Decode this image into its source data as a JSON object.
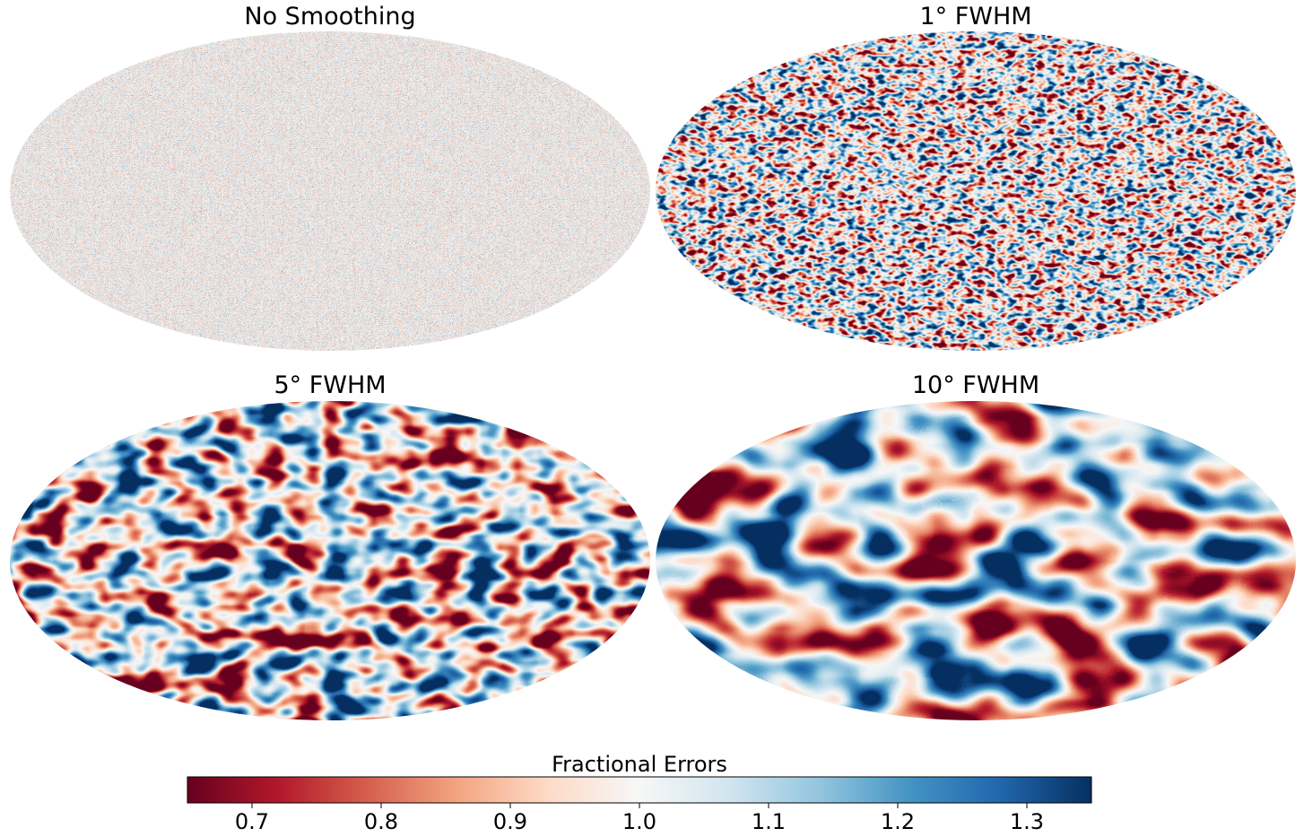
{
  "chart_data": {
    "type": "heatmap",
    "projection": "mollweide",
    "layout": "2x2",
    "colormap": "RdBu",
    "panels": [
      {
        "title": "No Smoothing",
        "smoothing": "none"
      },
      {
        "title": "1° FWHM",
        "smoothing_deg": 1
      },
      {
        "title": "5° FWHM",
        "smoothing_deg": 5
      },
      {
        "title": "10° FWHM",
        "smoothing_deg": 10
      }
    ],
    "colorbar": {
      "label": "Fractional Errors",
      "orientation": "horizontal",
      "placement": "bottom",
      "range": [
        0.65,
        1.35
      ],
      "ticks": [
        0.7,
        0.8,
        0.9,
        1.0,
        1.1,
        1.2,
        1.3
      ],
      "tick_labels": [
        "0.7",
        "0.8",
        "0.9",
        "1.0",
        "1.1",
        "1.2",
        "1.3"
      ]
    }
  }
}
